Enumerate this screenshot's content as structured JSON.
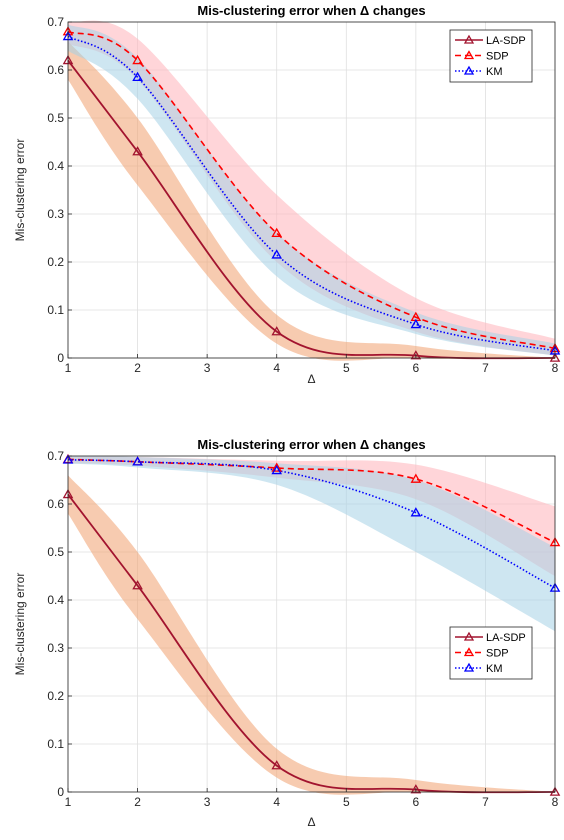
{
  "chart_data": [
    {
      "type": "line",
      "title": "Mis-clustering error when Δ changes",
      "xlabel": "Δ",
      "ylabel": "Mis-clustering error",
      "xlim": [
        1,
        8
      ],
      "ylim": [
        0,
        0.7
      ],
      "xticks": [
        "1",
        "2",
        "3",
        "4",
        "5",
        "6",
        "7",
        "8"
      ],
      "yticks": [
        "0",
        "0.1",
        "0.2",
        "0.3",
        "0.4",
        "0.5",
        "0.6",
        "0.7"
      ],
      "grid": true,
      "legend_position": "top-right",
      "x": [
        1,
        2,
        4,
        6,
        8
      ],
      "series": [
        {
          "name": "LA-SDP",
          "color": "#a2142f",
          "band_color": "#f0a070",
          "line_style": "solid",
          "marker": "triangle",
          "values": [
            0.62,
            0.43,
            0.055,
            0.005,
            0.0
          ],
          "band_lower": [
            0.58,
            0.36,
            0.03,
            0.0,
            0.0
          ],
          "band_upper": [
            0.66,
            0.5,
            0.09,
            0.025,
            0.0
          ]
        },
        {
          "name": "SDP",
          "color": "#ff0000",
          "band_color": "#ffb3ba",
          "line_style": "dashed",
          "marker": "triangle",
          "values": [
            0.68,
            0.62,
            0.26,
            0.085,
            0.02
          ],
          "band_lower": [
            0.655,
            0.58,
            0.2,
            0.055,
            0.005
          ],
          "band_upper": [
            0.7,
            0.665,
            0.34,
            0.125,
            0.04
          ]
        },
        {
          "name": "KM",
          "color": "#0000ff",
          "band_color": "#a6d2e6",
          "line_style": "dotted",
          "marker": "triangle",
          "values": [
            0.67,
            0.585,
            0.215,
            0.07,
            0.015
          ],
          "band_lower": [
            0.64,
            0.54,
            0.17,
            0.05,
            0.005
          ],
          "band_upper": [
            0.695,
            0.625,
            0.26,
            0.095,
            0.03
          ]
        }
      ]
    },
    {
      "type": "line",
      "title": "Mis-clustering error when Δ changes",
      "xlabel": "Δ",
      "ylabel": "Mis-clustering error",
      "xlim": [
        1,
        8
      ],
      "ylim": [
        0,
        0.7
      ],
      "xticks": [
        "1",
        "2",
        "3",
        "4",
        "5",
        "6",
        "7",
        "8"
      ],
      "yticks": [
        "0",
        "0.1",
        "0.2",
        "0.3",
        "0.4",
        "0.5",
        "0.6",
        "0.7"
      ],
      "grid": true,
      "legend_position": "middle-right",
      "x": [
        1,
        2,
        4,
        6,
        8
      ],
      "series": [
        {
          "name": "LA-SDP",
          "color": "#a2142f",
          "band_color": "#f0a070",
          "line_style": "solid",
          "marker": "triangle",
          "values": [
            0.62,
            0.43,
            0.055,
            0.005,
            0.0
          ],
          "band_lower": [
            0.58,
            0.36,
            0.03,
            0.0,
            0.0
          ],
          "band_upper": [
            0.66,
            0.5,
            0.09,
            0.025,
            0.0
          ]
        },
        {
          "name": "SDP",
          "color": "#ff0000",
          "band_color": "#ffb3ba",
          "line_style": "dashed",
          "marker": "triangle",
          "values": [
            0.693,
            0.688,
            0.675,
            0.652,
            0.52
          ],
          "band_lower": [
            0.685,
            0.68,
            0.655,
            0.61,
            0.45
          ],
          "band_upper": [
            0.7,
            0.698,
            0.69,
            0.682,
            0.595
          ]
        },
        {
          "name": "KM",
          "color": "#0000ff",
          "band_color": "#a6d2e6",
          "line_style": "dotted",
          "marker": "triangle",
          "values": [
            0.692,
            0.688,
            0.67,
            0.582,
            0.425
          ],
          "band_lower": [
            0.684,
            0.676,
            0.64,
            0.5,
            0.335
          ],
          "band_upper": [
            0.7,
            0.698,
            0.685,
            0.65,
            0.51
          ]
        }
      ]
    }
  ]
}
